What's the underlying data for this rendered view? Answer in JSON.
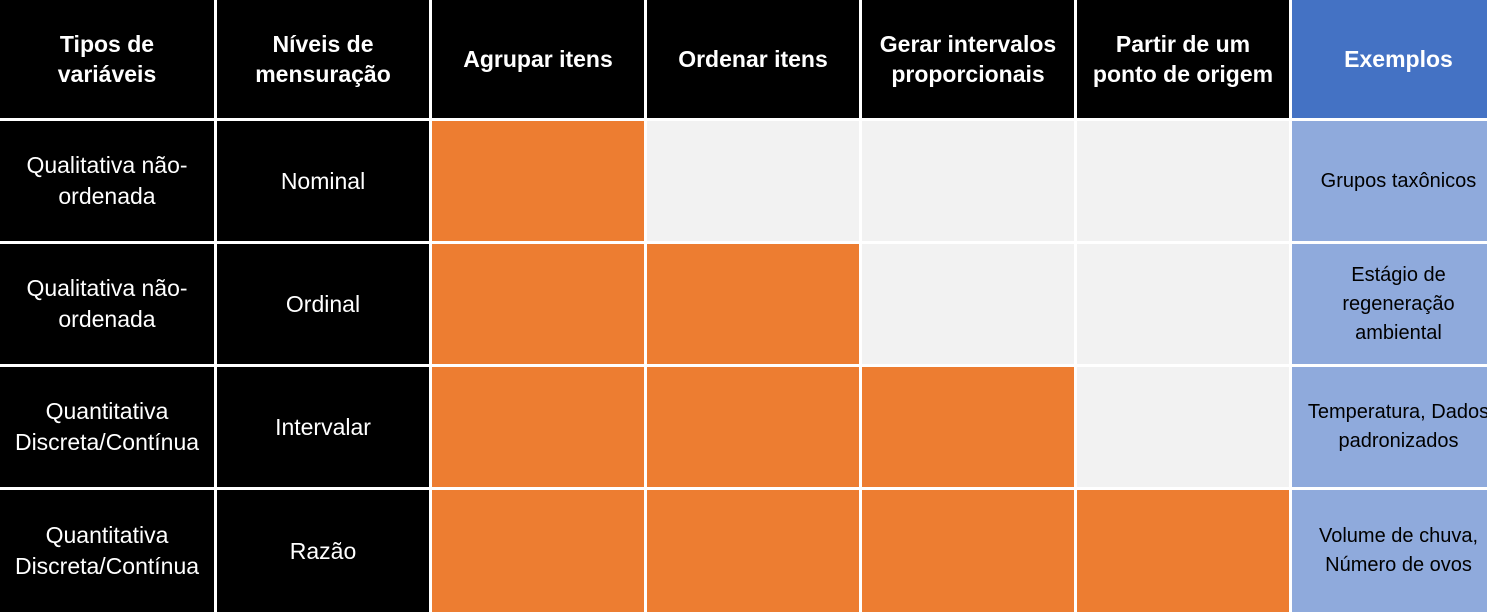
{
  "colors": {
    "header_bg": "#000000",
    "examples_header_bg": "#4472c4",
    "filled": "#ed7d31",
    "empty": "#f2f2f2",
    "examples_bg": "#8faadc"
  },
  "headers": [
    "Tipos de variáveis",
    "Níveis de mensuração",
    "Agrupar itens",
    "Ordenar itens",
    "Gerar intervalos proporcionais",
    "Partir de um ponto de origem",
    "Exemplos"
  ],
  "rows": [
    {
      "type": "Qualitativa não-ordenada",
      "level": "Nominal",
      "filled": [
        true,
        false,
        false,
        false
      ],
      "example": "Grupos taxônicos"
    },
    {
      "type": "Qualitativa não-ordenada",
      "level": "Ordinal",
      "filled": [
        true,
        true,
        false,
        false
      ],
      "example": "Estágio de regeneração ambiental"
    },
    {
      "type": "Quantitativa Discreta/Contínua",
      "level": "Intervalar",
      "filled": [
        true,
        true,
        true,
        false
      ],
      "example": "Temperatura, Dados padronizados"
    },
    {
      "type": "Quantitativa Discreta/Contínua",
      "level": "Razão",
      "filled": [
        true,
        true,
        true,
        true
      ],
      "example": "Volume de chuva, Número de ovos"
    }
  ]
}
